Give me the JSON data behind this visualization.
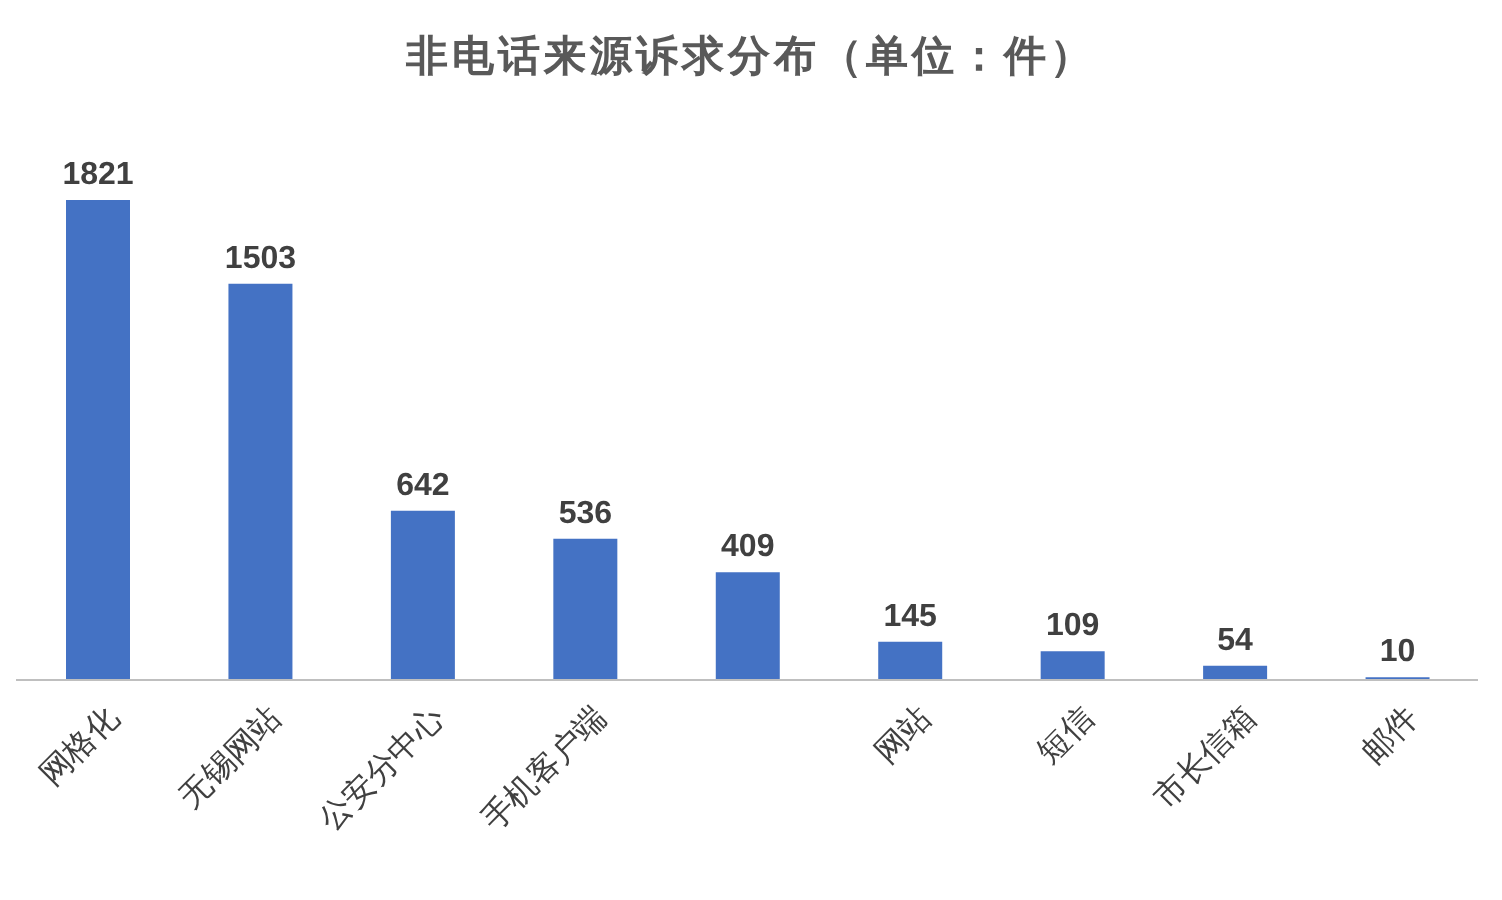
{
  "chart_data": {
    "type": "bar",
    "title": "非电话来源诉求分布（单位：件）",
    "categories": [
      "网格化",
      "无锡网站",
      "公安分中心",
      "手机客户端",
      null,
      "网站",
      "短信",
      "市长信箱",
      "邮件"
    ],
    "values": [
      1821,
      1503,
      642,
      536,
      409,
      145,
      109,
      54,
      10
    ],
    "color": "#4472c4",
    "data_labels": true
  }
}
